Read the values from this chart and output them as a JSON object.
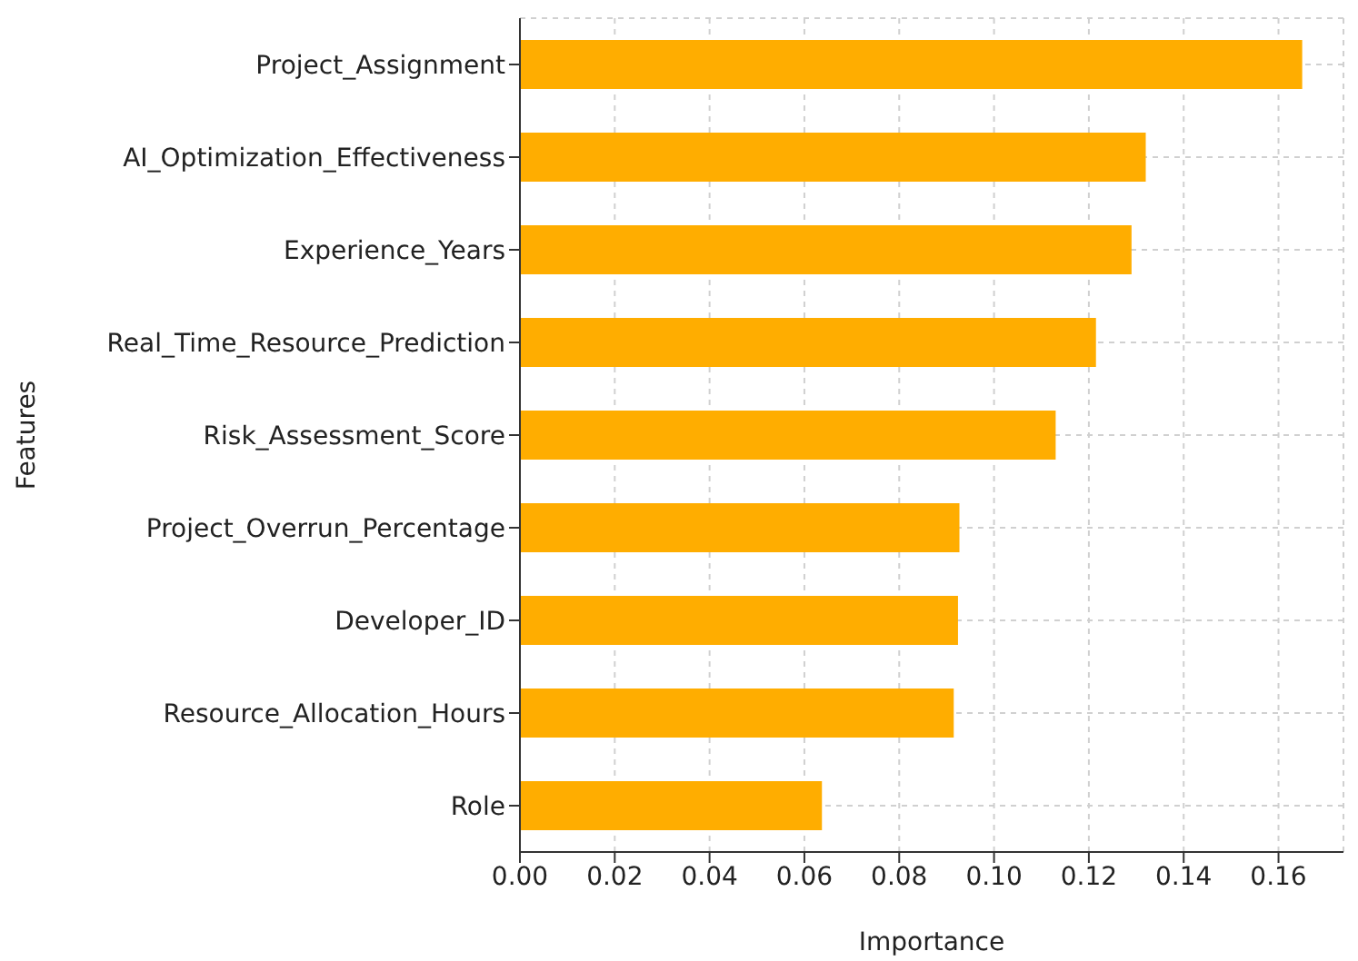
{
  "chart_data": {
    "type": "bar",
    "orientation": "horizontal",
    "xlabel": "Importance",
    "ylabel": "Features",
    "categories": [
      "Project_Assignment",
      "AI_Optimization_Effectiveness",
      "Experience_Years",
      "Real_Time_Resource_Prediction",
      "Risk_Assessment_Score",
      "Project_Overrun_Percentage",
      "Developer_ID",
      "Resource_Allocation_Hours",
      "Role"
    ],
    "values": [
      0.165,
      0.132,
      0.129,
      0.1215,
      0.113,
      0.0927,
      0.0924,
      0.0915,
      0.0637
    ],
    "color": "#ffad00",
    "xlim": [
      0,
      0.1737
    ],
    "xticks": [
      {
        "value": 0,
        "label": "0.00"
      },
      {
        "value": 0.02,
        "label": "0.02"
      },
      {
        "value": 0.04,
        "label": "0.04"
      },
      {
        "value": 0.06,
        "label": "0.06"
      },
      {
        "value": 0.08,
        "label": "0.08"
      },
      {
        "value": 0.1,
        "label": "0.10"
      },
      {
        "value": 0.12,
        "label": "0.12"
      },
      {
        "value": 0.14,
        "label": "0.14"
      },
      {
        "value": 0.16,
        "label": "0.16"
      }
    ],
    "grid": true
  }
}
